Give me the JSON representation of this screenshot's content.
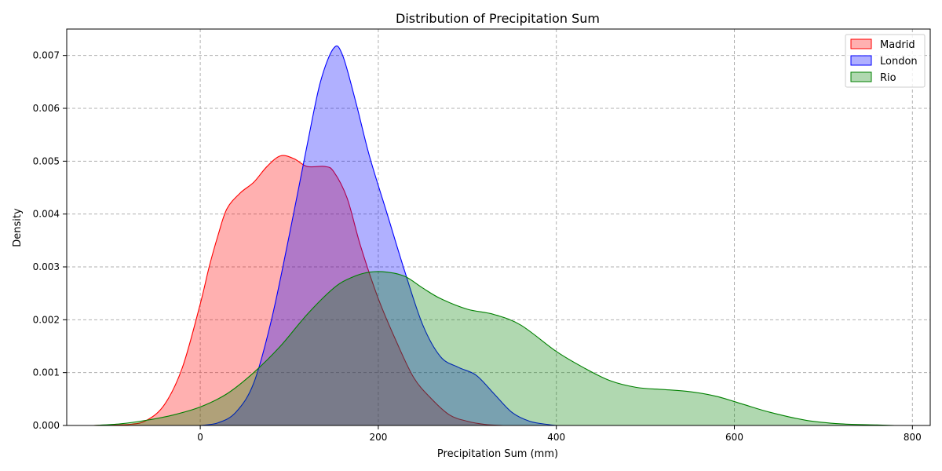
{
  "chart_data": {
    "type": "area",
    "title": "Distribution of Precipitation Sum",
    "xlabel": "Precipitation Sum (mm)",
    "ylabel": "Density",
    "xlim": [
      -150,
      820
    ],
    "ylim": [
      0,
      0.0075
    ],
    "x_ticks": [
      0,
      200,
      400,
      600,
      800
    ],
    "y_ticks": [
      0.0,
      0.001,
      0.002,
      0.003,
      0.004,
      0.005,
      0.006,
      0.007
    ],
    "x_tick_labels": [
      "0",
      "200",
      "400",
      "600",
      "800"
    ],
    "y_tick_labels": [
      "0.000",
      "0.001",
      "0.002",
      "0.003",
      "0.004",
      "0.005",
      "0.006",
      "0.007"
    ],
    "grid": true,
    "legend_position": "top-right",
    "series": [
      {
        "name": "Madrid",
        "color": "#ff0000",
        "points": [
          [
            -120,
            0
          ],
          [
            -80,
            2e-05
          ],
          [
            -60,
            0.0001
          ],
          [
            -40,
            0.0004
          ],
          [
            -20,
            0.0011
          ],
          [
            0,
            0.0023
          ],
          [
            10,
            0.003
          ],
          [
            20,
            0.0036
          ],
          [
            30,
            0.0041
          ],
          [
            45,
            0.0044
          ],
          [
            60,
            0.0046
          ],
          [
            75,
            0.0049
          ],
          [
            90,
            0.0051
          ],
          [
            105,
            0.00505
          ],
          [
            120,
            0.0049
          ],
          [
            140,
            0.0049
          ],
          [
            150,
            0.0048
          ],
          [
            165,
            0.0043
          ],
          [
            180,
            0.0034
          ],
          [
            200,
            0.0024
          ],
          [
            220,
            0.0016
          ],
          [
            240,
            0.0009
          ],
          [
            260,
            0.0005
          ],
          [
            280,
            0.0002
          ],
          [
            300,
            8e-05
          ],
          [
            320,
            2e-05
          ],
          [
            340,
            0
          ]
        ]
      },
      {
        "name": "London",
        "color": "#0000ff",
        "points": [
          [
            0,
            0
          ],
          [
            20,
            5e-05
          ],
          [
            40,
            0.00025
          ],
          [
            60,
            0.0008
          ],
          [
            80,
            0.002
          ],
          [
            100,
            0.0036
          ],
          [
            120,
            0.0053
          ],
          [
            135,
            0.0065
          ],
          [
            150,
            0.00714
          ],
          [
            160,
            0.007
          ],
          [
            175,
            0.0061
          ],
          [
            190,
            0.0051
          ],
          [
            210,
            0.004
          ],
          [
            230,
            0.0029
          ],
          [
            250,
            0.0019
          ],
          [
            270,
            0.0013
          ],
          [
            290,
            0.0011
          ],
          [
            310,
            0.00095
          ],
          [
            330,
            0.0006
          ],
          [
            350,
            0.00025
          ],
          [
            370,
            8e-05
          ],
          [
            390,
            2e-05
          ],
          [
            400,
            0
          ]
        ]
      },
      {
        "name": "Rio",
        "color": "#008000",
        "points": [
          [
            -120,
            0
          ],
          [
            -90,
            3e-05
          ],
          [
            -60,
            0.0001
          ],
          [
            -30,
            0.0002
          ],
          [
            0,
            0.00035
          ],
          [
            30,
            0.0006
          ],
          [
            60,
            0.001
          ],
          [
            90,
            0.0015
          ],
          [
            120,
            0.0021
          ],
          [
            150,
            0.0026
          ],
          [
            170,
            0.0028
          ],
          [
            190,
            0.0029
          ],
          [
            210,
            0.0029
          ],
          [
            230,
            0.00282
          ],
          [
            250,
            0.0026
          ],
          [
            270,
            0.0024
          ],
          [
            300,
            0.0022
          ],
          [
            330,
            0.0021
          ],
          [
            360,
            0.0019
          ],
          [
            400,
            0.0014
          ],
          [
            430,
            0.0011
          ],
          [
            460,
            0.00085
          ],
          [
            490,
            0.00072
          ],
          [
            520,
            0.00068
          ],
          [
            550,
            0.00064
          ],
          [
            580,
            0.00055
          ],
          [
            610,
            0.0004
          ],
          [
            640,
            0.00025
          ],
          [
            680,
            0.0001
          ],
          [
            720,
            3e-05
          ],
          [
            760,
            1e-05
          ],
          [
            780,
            0
          ]
        ]
      }
    ]
  }
}
